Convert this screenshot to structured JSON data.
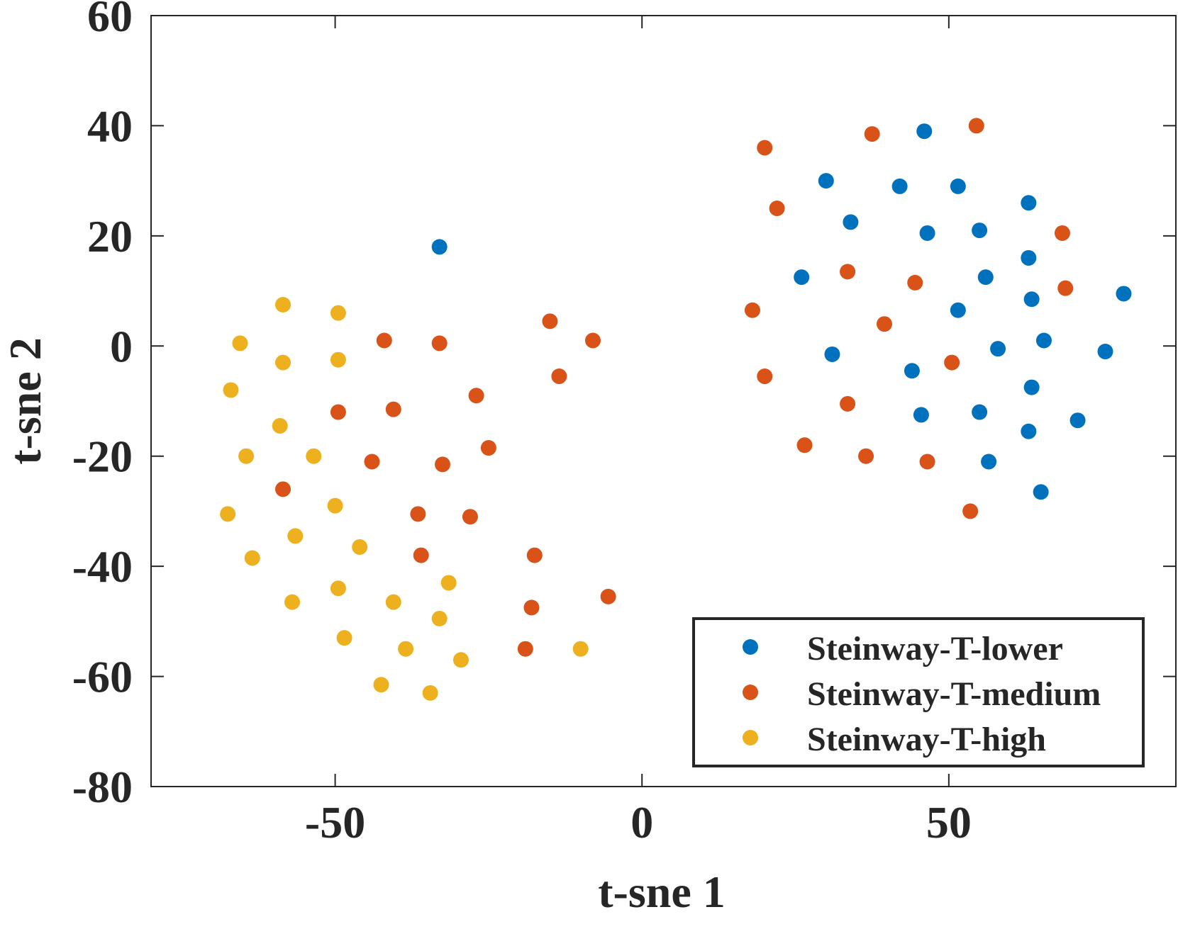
{
  "chart_data": {
    "type": "scatter",
    "title": "",
    "xlabel": "t-sne 1",
    "ylabel": "t-sne 2",
    "xlim": [
      -80,
      87
    ],
    "ylim": [
      -80,
      60
    ],
    "xticks": [
      -50,
      0,
      50
    ],
    "yticks": [
      -80,
      -60,
      -40,
      -20,
      0,
      20,
      40,
      60
    ],
    "xtick_labels": [
      "-50",
      "0",
      "50"
    ],
    "ytick_labels": [
      "-80",
      "-60",
      "-40",
      "-20",
      "0",
      "20",
      "40",
      "60"
    ],
    "grid": false,
    "legend_position": "bottom-right",
    "series": [
      {
        "name": "Steinway-T-lower",
        "color": "#0072BD",
        "points": [
          [
            -33,
            18
          ],
          [
            46,
            39
          ],
          [
            30,
            30
          ],
          [
            42,
            29
          ],
          [
            51.5,
            29
          ],
          [
            34,
            22.5
          ],
          [
            46.5,
            20.5
          ],
          [
            55,
            21
          ],
          [
            63,
            26
          ],
          [
            63,
            16
          ],
          [
            26,
            12.5
          ],
          [
            56,
            12.5
          ],
          [
            51.5,
            6.5
          ],
          [
            63.5,
            8.5
          ],
          [
            78.5,
            9.5
          ],
          [
            31,
            -1.5
          ],
          [
            58,
            -0.5
          ],
          [
            65.5,
            1
          ],
          [
            75.5,
            -1
          ],
          [
            44,
            -4.5
          ],
          [
            45.5,
            -12.5
          ],
          [
            55,
            -12
          ],
          [
            63.5,
            -7.5
          ],
          [
            63,
            -15.5
          ],
          [
            71,
            -13.5
          ],
          [
            56.5,
            -21
          ],
          [
            65,
            -26.5
          ]
        ]
      },
      {
        "name": "Steinway-T-medium",
        "color": "#D95319",
        "points": [
          [
            20,
            36
          ],
          [
            37.5,
            38.5
          ],
          [
            54.5,
            40
          ],
          [
            22,
            25
          ],
          [
            68.5,
            20.5
          ],
          [
            33.5,
            13.5
          ],
          [
            44.5,
            11.5
          ],
          [
            69,
            10.5
          ],
          [
            18,
            6.5
          ],
          [
            39.5,
            4
          ],
          [
            50.5,
            -3
          ],
          [
            20,
            -5.5
          ],
          [
            33.5,
            -10.5
          ],
          [
            26.5,
            -18
          ],
          [
            36.5,
            -20
          ],
          [
            46.5,
            -21
          ],
          [
            53.5,
            -30
          ],
          [
            -42,
            1
          ],
          [
            -33,
            0.5
          ],
          [
            -15,
            4.5
          ],
          [
            -8,
            1
          ],
          [
            -13.5,
            -5.5
          ],
          [
            -27,
            -9
          ],
          [
            -49.5,
            -12
          ],
          [
            -40.5,
            -11.5
          ],
          [
            -44,
            -21
          ],
          [
            -32.5,
            -21.5
          ],
          [
            -25,
            -18.5
          ],
          [
            -58.5,
            -26
          ],
          [
            -36.5,
            -30.5
          ],
          [
            -28,
            -31
          ],
          [
            -36,
            -38
          ],
          [
            -17.5,
            -38
          ],
          [
            -18,
            -47.5
          ],
          [
            -5.5,
            -45.5
          ],
          [
            -19,
            -55
          ]
        ]
      },
      {
        "name": "Steinway-T-high",
        "color": "#EDB120",
        "points": [
          [
            -58.5,
            7.5
          ],
          [
            -49.5,
            6
          ],
          [
            -65.5,
            0.5
          ],
          [
            -58.5,
            -3
          ],
          [
            -49.5,
            -2.5
          ],
          [
            -67,
            -8
          ],
          [
            -59,
            -14.5
          ],
          [
            -64.5,
            -20
          ],
          [
            -53.5,
            -20
          ],
          [
            -67.5,
            -30.5
          ],
          [
            -50,
            -29
          ],
          [
            -56.5,
            -34.5
          ],
          [
            -46,
            -36.5
          ],
          [
            -63.5,
            -38.5
          ],
          [
            -49.5,
            -44
          ],
          [
            -57,
            -46.5
          ],
          [
            -40.5,
            -46.5
          ],
          [
            -31.5,
            -43
          ],
          [
            -33,
            -49.5
          ],
          [
            -48.5,
            -53
          ],
          [
            -38.5,
            -55
          ],
          [
            -29.5,
            -57
          ],
          [
            -42.5,
            -61.5
          ],
          [
            -34.5,
            -63
          ],
          [
            -10,
            -55
          ]
        ]
      }
    ]
  }
}
